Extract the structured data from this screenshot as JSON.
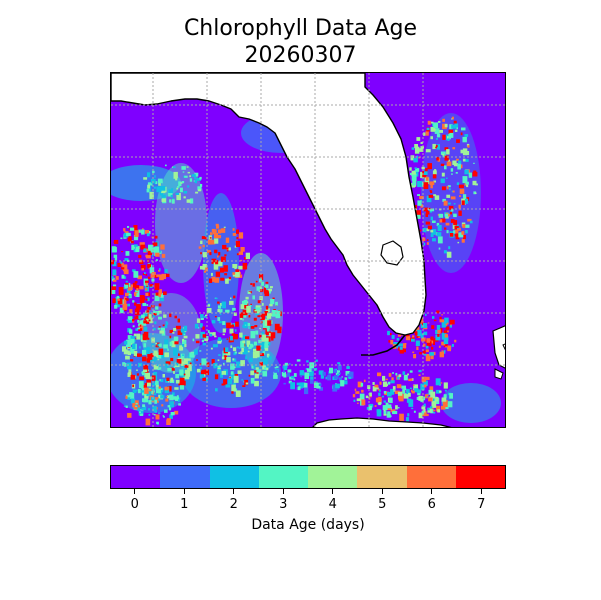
{
  "title": {
    "line1": "Chlorophyll Data Age",
    "line2": "20260307"
  },
  "map": {
    "ocean_base_color": "#7f00ff",
    "land_color": "#ffffff",
    "coastline_color": "#000000",
    "gridlines": "dotted-gray"
  },
  "colorbar": {
    "label": "Data Age (days)",
    "ticks": [
      "0",
      "1",
      "2",
      "3",
      "4",
      "5",
      "6",
      "7"
    ],
    "colors": [
      "#7f00ff",
      "#3f6bf9",
      "#10c0e4",
      "#53f5c4",
      "#a1f398",
      "#eac16d",
      "#ff6f3a",
      "#ff0000"
    ]
  }
}
